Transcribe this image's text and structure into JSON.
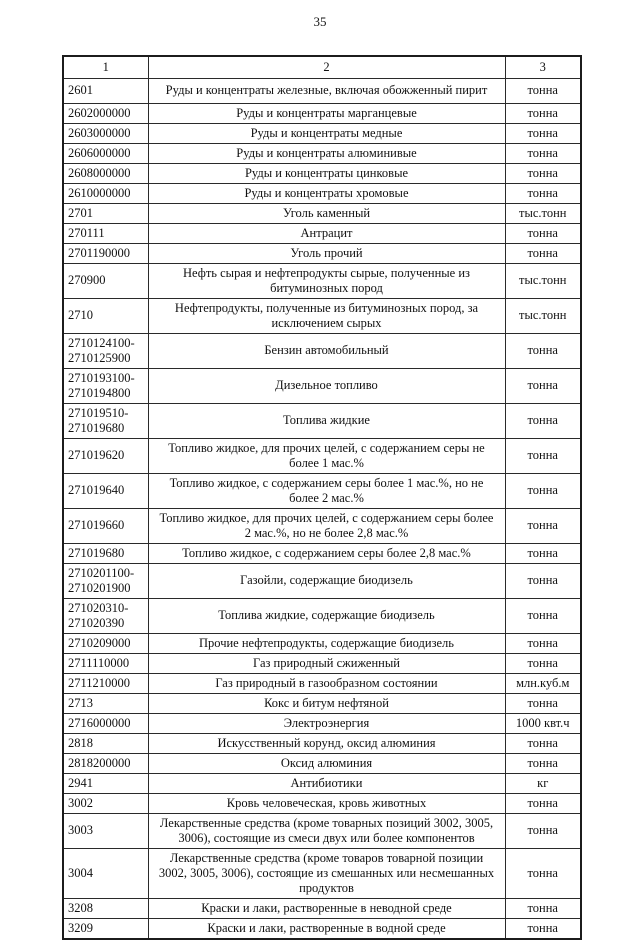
{
  "page": {
    "number": "35"
  },
  "table": {
    "columns": [
      "1",
      "2",
      "3"
    ],
    "rows": [
      {
        "code": "2601",
        "name": "Руды и концентраты железные, включая обожженный пирит",
        "unit": "тонна"
      },
      {
        "code": "2602000000",
        "name": "Руды и концентраты марганцевые",
        "unit": "тонна"
      },
      {
        "code": "2603000000",
        "name": "Руды и концентраты медные",
        "unit": "тонна"
      },
      {
        "code": "2606000000",
        "name": "Руды и концентраты алюминивые",
        "unit": "тонна"
      },
      {
        "code": "2608000000",
        "name": "Руды и концентраты цинковые",
        "unit": "тонна"
      },
      {
        "code": "2610000000",
        "name": "Руды и концентраты хромовые",
        "unit": "тонна"
      },
      {
        "code": "2701",
        "name": "Уголь каменный",
        "unit": "тыс.тонн"
      },
      {
        "code": "270111",
        "name": "Антрацит",
        "unit": "тонна"
      },
      {
        "code": "2701190000",
        "name": "Уголь прочий",
        "unit": "тонна"
      },
      {
        "code": "270900",
        "name": "Нефть сырая и нефтепродукты сырые, полученные из битуминозных пород",
        "unit": "тыс.тонн"
      },
      {
        "code": "2710",
        "name": "Нефтепродукты, полученные из битуминозных пород, за исключением сырых",
        "unit": "тыс.тонн"
      },
      {
        "code": "2710124100-2710125900",
        "name": "Бензин автомобильный",
        "unit": "тонна"
      },
      {
        "code": "2710193100-2710194800",
        "name": "Дизельное топливо",
        "unit": "тонна"
      },
      {
        "code": "271019510-271019680",
        "name": "Топлива жидкие",
        "unit": "тонна"
      },
      {
        "code": "271019620",
        "name": "Топливо жидкое, для прочих целей, с содержанием серы не более 1 мас.%",
        "unit": "тонна"
      },
      {
        "code": "271019640",
        "name": "Топливо жидкое, с содержанием серы более 1 мас.%, но не более 2 мас.%",
        "unit": "тонна"
      },
      {
        "code": "271019660",
        "name": "Топливо жидкое, для прочих целей, с содержанием серы более 2 мас.%, но не более 2,8 мас.%",
        "unit": "тонна"
      },
      {
        "code": "271019680",
        "name": "Топливо жидкое, с содержанием серы более 2,8 мас.%",
        "unit": "тонна"
      },
      {
        "code": "2710201100-2710201900",
        "name": "Газойли, содержащие биодизель",
        "unit": "тонна"
      },
      {
        "code": "271020310-271020390",
        "name": "Топлива жидкие, содержащие биодизель",
        "unit": "тонна"
      },
      {
        "code": "2710209000",
        "name": "Прочие нефтепродукты, содержащие биодизель",
        "unit": "тонна"
      },
      {
        "code": "2711110000",
        "name": "Газ природный сжиженный",
        "unit": "тонна"
      },
      {
        "code": "2711210000",
        "name": "Газ природный в газообразном состоянии",
        "unit": "млн.куб.м"
      },
      {
        "code": "2713",
        "name": "Кокс и битум нефтяной",
        "unit": "тонна"
      },
      {
        "code": "2716000000",
        "name": "Электроэнергия",
        "unit": "1000 квт.ч"
      },
      {
        "code": "2818",
        "name": "Искусственный корунд, оксид алюминия",
        "unit": "тонна"
      },
      {
        "code": "2818200000",
        "name": "Оксид алюминия",
        "unit": "тонна"
      },
      {
        "code": "2941",
        "name": "Антибиотики",
        "unit": "кг"
      },
      {
        "code": "3002",
        "name": "Кровь человеческая, кровь животных",
        "unit": "тонна"
      },
      {
        "code": "3003",
        "name": "Лекарственные средства (кроме товарных позиций 3002, 3005, 3006), состоящие из смеси двух или более компонентов",
        "unit": "тонна"
      },
      {
        "code": "3004",
        "name": "Лекарственные средства (кроме товаров товарной позиции 3002, 3005, 3006), состоящие из смешанных или несмешанных продуктов",
        "unit": "тонна"
      },
      {
        "code": "3208",
        "name": "Краски и лаки, растворенные в неводной среде",
        "unit": "тонна"
      },
      {
        "code": "3209",
        "name": "Краски и лаки, растворенные в водной среде",
        "unit": "тонна"
      }
    ]
  }
}
